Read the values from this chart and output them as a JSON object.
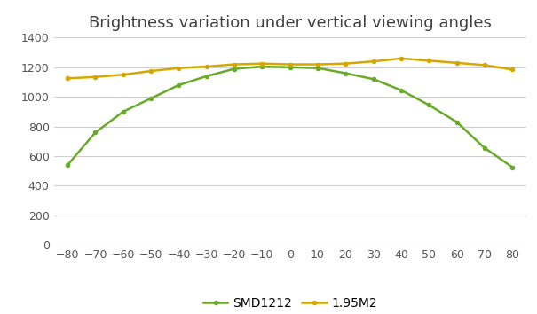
{
  "title": "Brightness variation under vertical viewing angles",
  "x_values": [
    -80,
    -70,
    -60,
    -50,
    -40,
    -30,
    -20,
    -10,
    0,
    10,
    20,
    30,
    40,
    50,
    60,
    70,
    80
  ],
  "smd1212": [
    540,
    760,
    900,
    990,
    1080,
    1140,
    1190,
    1205,
    1200,
    1195,
    1160,
    1120,
    1045,
    945,
    830,
    655,
    525
  ],
  "m195": [
    1125,
    1135,
    1150,
    1175,
    1195,
    1205,
    1220,
    1225,
    1220,
    1220,
    1225,
    1240,
    1260,
    1245,
    1230,
    1215,
    1185
  ],
  "smd1212_color": "#6aaa2a",
  "m195_color": "#d4a800",
  "ylim": [
    0,
    1400
  ],
  "yticks": [
    0,
    200,
    400,
    600,
    800,
    1000,
    1200,
    1400
  ],
  "xticks": [
    -80,
    -70,
    -60,
    -50,
    -40,
    -30,
    -20,
    -10,
    0,
    10,
    20,
    30,
    40,
    50,
    60,
    70,
    80
  ],
  "legend_smd1212": "SMD1212",
  "legend_m195": "1.95M2",
  "bg_color": "#ffffff",
  "grid_color": "#d0d0d0",
  "marker_size": 4,
  "line_width": 1.8,
  "title_fontsize": 13,
  "tick_fontsize": 9
}
